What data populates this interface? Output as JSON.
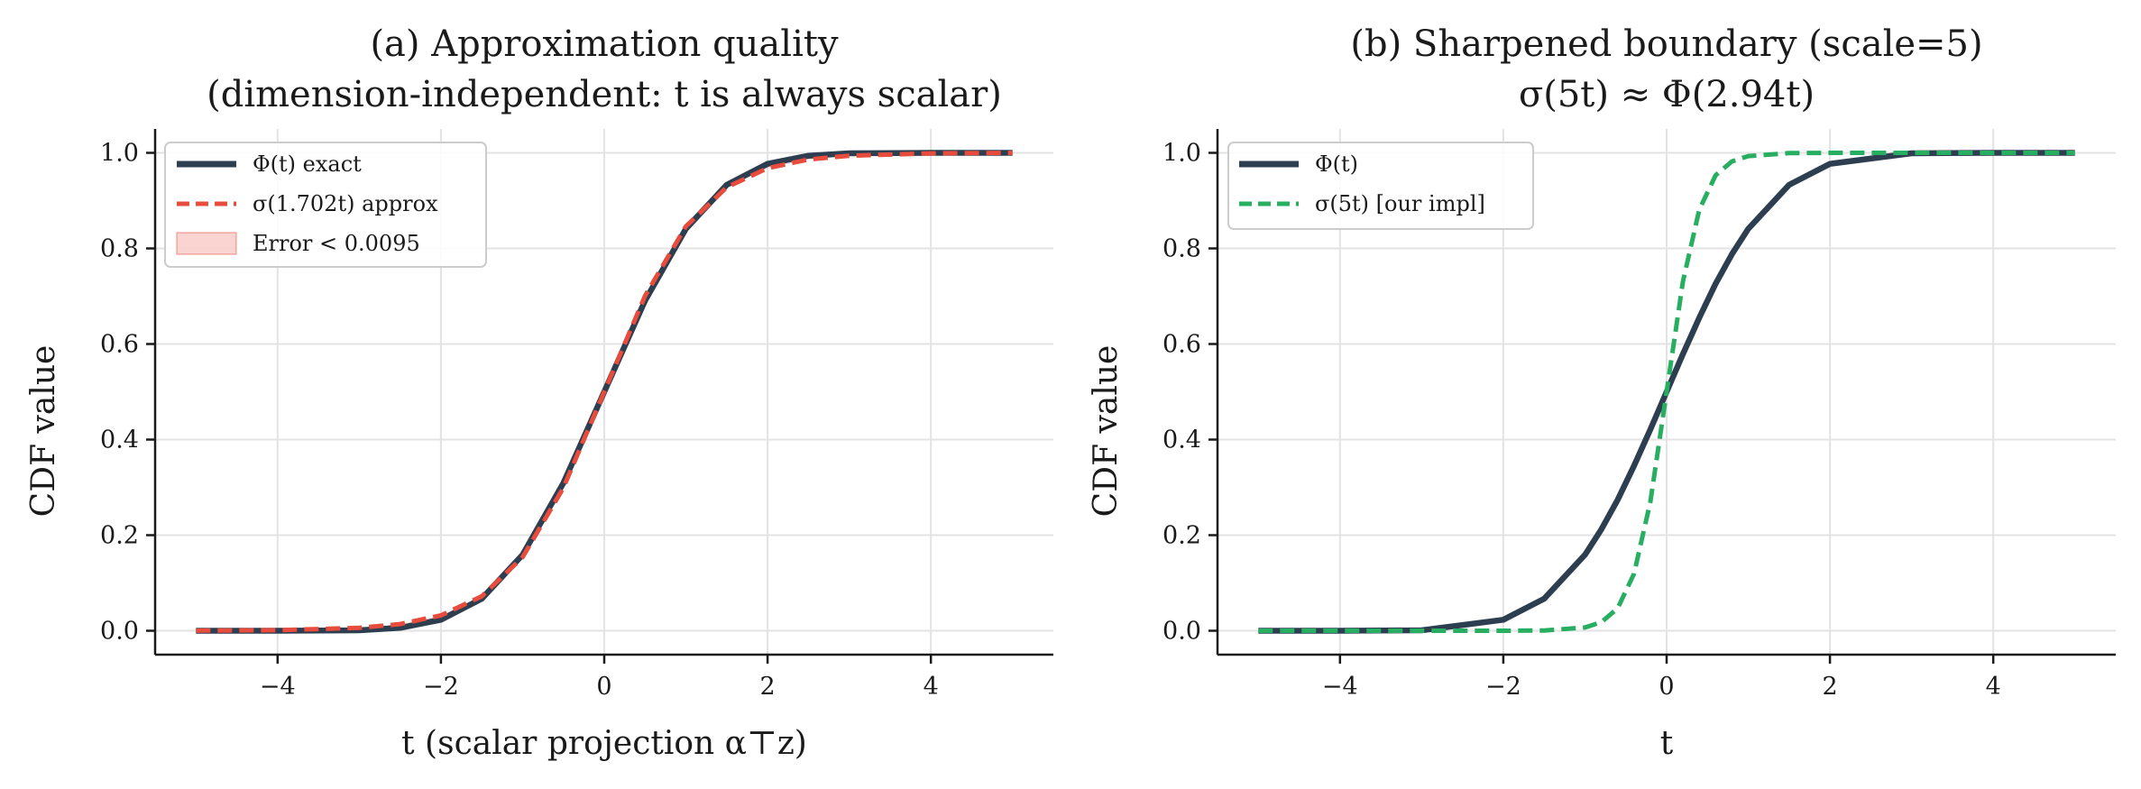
{
  "chart_data": [
    {
      "type": "line",
      "title_line1": "(a) Approximation quality",
      "title_line2": "(dimension-independent: t is always scalar)",
      "xlabel": "t (scalar projection α⊤z)",
      "ylabel": "CDF value",
      "xlim": [
        -5.5,
        5.5
      ],
      "ylim": [
        -0.05,
        1.05
      ],
      "xticks": [
        -4,
        -2,
        0,
        2,
        4
      ],
      "xtick_labels": [
        "−4",
        "−2",
        "0",
        "2",
        "4"
      ],
      "yticks": [
        0.0,
        0.2,
        0.4,
        0.6,
        0.8,
        1.0
      ],
      "ytick_labels": [
        "0.0",
        "0.2",
        "0.4",
        "0.6",
        "0.8",
        "1.0"
      ],
      "grid": true,
      "legend_position": "top-left",
      "x": [
        -5,
        -4,
        -3,
        -2.5,
        -2,
        -1.5,
        -1,
        -0.5,
        0,
        0.5,
        1,
        1.5,
        2,
        2.5,
        3,
        4,
        5
      ],
      "series": [
        {
          "name": "Φ(t) exact",
          "style": "solid",
          "color": "#2c3e50",
          "values": [
            0.0,
            0.0,
            0.001,
            0.006,
            0.023,
            0.067,
            0.159,
            0.309,
            0.5,
            0.691,
            0.841,
            0.933,
            0.977,
            0.994,
            0.999,
            1.0,
            1.0
          ]
        },
        {
          "name": "σ(1.702t) approx",
          "style": "dashed",
          "color": "#e74c3c",
          "values": [
            0.0002,
            0.0011,
            0.006,
            0.014,
            0.032,
            0.072,
            0.154,
            0.299,
            0.5,
            0.701,
            0.846,
            0.928,
            0.968,
            0.986,
            0.994,
            0.9989,
            0.9998
          ]
        },
        {
          "name": "Error < 0.0095",
          "style": "fill",
          "color": "#f5b7b1"
        }
      ]
    },
    {
      "type": "line",
      "title_line1": "(b) Sharpened boundary (scale=5)",
      "title_line2": "σ(5t) ≈ Φ(2.94t)",
      "xlabel": "t",
      "ylabel": "CDF value",
      "xlim": [
        -5.5,
        5.5
      ],
      "ylim": [
        -0.05,
        1.05
      ],
      "xticks": [
        -4,
        -2,
        0,
        2,
        4
      ],
      "xtick_labels": [
        "−4",
        "−2",
        "0",
        "2",
        "4"
      ],
      "yticks": [
        0.0,
        0.2,
        0.4,
        0.6,
        0.8,
        1.0
      ],
      "ytick_labels": [
        "0.0",
        "0.2",
        "0.4",
        "0.6",
        "0.8",
        "1.0"
      ],
      "grid": true,
      "legend_position": "top-left",
      "x": [
        -5,
        -4,
        -3,
        -2,
        -1.5,
        -1,
        -0.8,
        -0.6,
        -0.4,
        -0.2,
        0,
        0.2,
        0.4,
        0.6,
        0.8,
        1,
        1.5,
        2,
        3,
        4,
        5
      ],
      "series": [
        {
          "name": "Φ(t)",
          "style": "solid",
          "color": "#2c3e50",
          "values": [
            0.0,
            0.0,
            0.001,
            0.023,
            0.067,
            0.159,
            0.212,
            0.274,
            0.345,
            0.421,
            0.5,
            0.579,
            0.655,
            0.726,
            0.788,
            0.841,
            0.933,
            0.977,
            0.999,
            1.0,
            1.0
          ]
        },
        {
          "name": "σ(5t) [our impl]",
          "style": "dashed",
          "color": "#27ae60",
          "values": [
            0.0,
            0.0,
            0.0,
            5e-05,
            0.0006,
            0.0067,
            0.018,
            0.047,
            0.119,
            0.269,
            0.5,
            0.731,
            0.881,
            0.953,
            0.982,
            0.9933,
            0.9994,
            0.99995,
            1.0,
            1.0,
            1.0
          ]
        }
      ]
    }
  ]
}
